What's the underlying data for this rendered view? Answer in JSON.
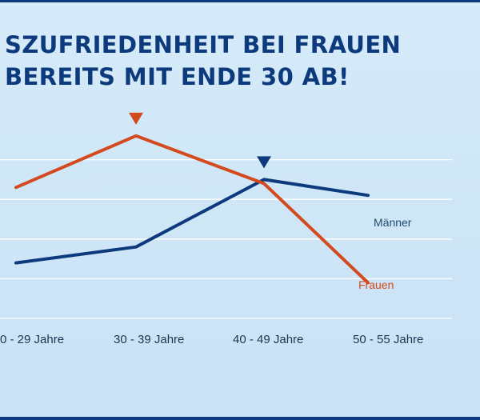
{
  "title_lines": [
    "SZUFRIEDENHEIT BEI FRAUEN",
    "BEREITS MIT ENDE 30 AB!"
  ],
  "colors": {
    "navy": "#0d3a7d",
    "orange": "#d24a1e",
    "gridline": "#ffffff",
    "tick_text": "#1d3553"
  },
  "chart_data": {
    "type": "line",
    "categories": [
      "0  - 29 Jahre",
      "30  - 39 Jahre",
      "40  - 49 Jahre",
      "50  - 55 Jahre"
    ],
    "series": [
      {
        "name": "Männer",
        "color": "#0d3a7d",
        "values": [
          1.4,
          1.8,
          3.5,
          3.1
        ]
      },
      {
        "name": "Frauen",
        "color": "#d24a1e",
        "values": [
          3.3,
          4.6,
          3.4,
          0.9
        ]
      }
    ],
    "ylim": [
      0,
      5
    ],
    "grid": true,
    "peak_markers": [
      {
        "series": "Frauen",
        "category": "30  - 39 Jahre"
      },
      {
        "series": "Männer",
        "category": "40  - 49 Jahre"
      }
    ]
  }
}
